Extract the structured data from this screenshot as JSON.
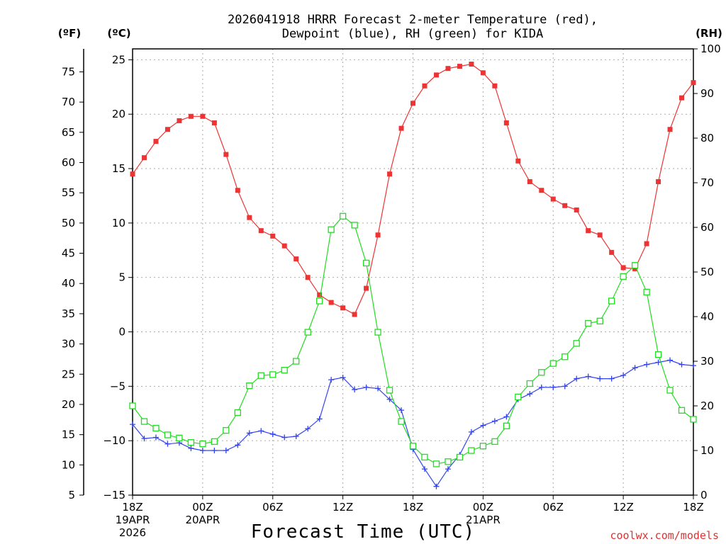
{
  "chart_data": {
    "type": "line",
    "title_lines": [
      "2026041918 HRRR Forecast 2-meter Temperature (red),",
      "Dewpoint (blue), RH (green) for KIDA"
    ],
    "xlabel": "Forecast Time (UTC)",
    "credit": "coolwx.com/models",
    "units": {
      "fahrenheit": "(ºF)",
      "celsius": "(ºC)",
      "rh": "(RH)"
    },
    "x_range_hours": [
      0,
      48
    ],
    "celsius_axis": {
      "range": [
        -15,
        26
      ],
      "ticks": [
        -15,
        -10,
        -5,
        0,
        5,
        10,
        15,
        20,
        25
      ]
    },
    "fahrenheit_axis": {
      "range": [
        5,
        78.8
      ],
      "ticks": [
        5,
        10,
        15,
        20,
        25,
        30,
        35,
        40,
        45,
        50,
        55,
        60,
        65,
        70,
        75
      ]
    },
    "rh_axis": {
      "range": [
        0,
        100
      ],
      "ticks": [
        0,
        10,
        20,
        30,
        40,
        50,
        60,
        70,
        80,
        90,
        100
      ]
    },
    "x_ticks": [
      {
        "hour": 0,
        "lines": [
          "18Z",
          "19APR",
          "2026"
        ]
      },
      {
        "hour": 6,
        "lines": [
          "00Z",
          "20APR"
        ]
      },
      {
        "hour": 12,
        "lines": [
          "06Z"
        ]
      },
      {
        "hour": 18,
        "lines": [
          "12Z"
        ]
      },
      {
        "hour": 24,
        "lines": [
          "18Z"
        ]
      },
      {
        "hour": 30,
        "lines": [
          "00Z",
          "21APR"
        ]
      },
      {
        "hour": 36,
        "lines": [
          "06Z"
        ]
      },
      {
        "hour": 42,
        "lines": [
          "12Z"
        ]
      },
      {
        "hour": 48,
        "lines": [
          "18Z"
        ]
      }
    ],
    "series": [
      {
        "name": "Temperature",
        "axis": "celsius",
        "color": "#ee3333",
        "marker": "filled-square",
        "values": [
          14.5,
          16.0,
          17.5,
          18.6,
          19.4,
          19.8,
          19.8,
          19.2,
          16.3,
          13.0,
          10.5,
          9.3,
          8.8,
          7.9,
          6.7,
          5.0,
          3.4,
          2.7,
          2.2,
          1.6,
          4.0,
          8.9,
          14.5,
          18.7,
          21.0,
          22.6,
          23.6,
          24.2,
          24.4,
          24.6,
          23.8,
          22.6,
          19.2,
          15.7,
          13.8,
          13.0,
          12.2,
          11.6,
          11.2,
          9.3,
          8.9,
          7.3,
          5.9,
          5.8,
          8.1,
          13.8,
          18.6,
          21.5,
          22.9
        ]
      },
      {
        "name": "Dewpoint",
        "axis": "celsius",
        "color": "#3344ee",
        "marker": "plus",
        "values": [
          -8.5,
          -9.8,
          -9.7,
          -10.3,
          -10.2,
          -10.7,
          -10.9,
          -10.9,
          -10.9,
          -10.4,
          -9.3,
          -9.1,
          -9.4,
          -9.7,
          -9.6,
          -8.9,
          -8.0,
          -4.4,
          -4.2,
          -5.3,
          -5.1,
          -5.2,
          -6.2,
          -7.2,
          -10.8,
          -12.6,
          -14.2,
          -12.6,
          -11.3,
          -9.2,
          -8.6,
          -8.2,
          -7.8,
          -6.2,
          -5.7,
          -5.1,
          -5.1,
          -5.0,
          -4.3,
          -4.1,
          -4.3,
          -4.3,
          -4.0,
          -3.3,
          -3.0,
          -2.8,
          -2.6,
          -3.0,
          -3.1
        ]
      },
      {
        "name": "RH",
        "axis": "rh",
        "color": "#22dd22",
        "marker": "open-square",
        "values": [
          20.0,
          16.5,
          15.0,
          13.5,
          12.8,
          11.8,
          11.5,
          12.0,
          14.5,
          18.5,
          24.5,
          26.8,
          27.0,
          28.0,
          30.0,
          36.5,
          43.5,
          59.5,
          62.5,
          60.5,
          52.0,
          36.5,
          23.5,
          16.5,
          11.0,
          8.5,
          7.0,
          7.5,
          8.5,
          10.0,
          11.0,
          12.0,
          15.5,
          22.0,
          25.0,
          27.5,
          29.5,
          31.0,
          34.0,
          38.5,
          39.0,
          43.5,
          49.0,
          51.5,
          45.5,
          31.5,
          23.5,
          19.0,
          17.0
        ]
      }
    ]
  }
}
